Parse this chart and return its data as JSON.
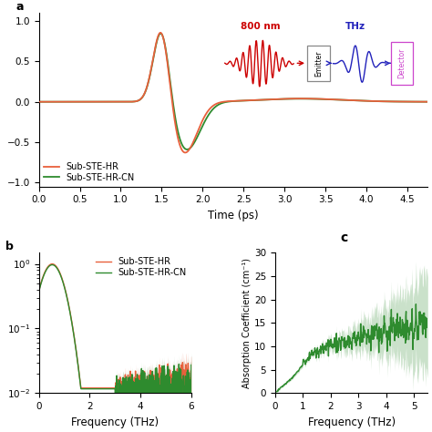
{
  "top_panel": {
    "xlim": [
      0,
      4.75
    ],
    "ylim": [
      -1.05,
      1.1
    ],
    "xticks": [
      0,
      0.5,
      1,
      1.5,
      2,
      2.5,
      3,
      3.5,
      4,
      4.5
    ],
    "yticks": [
      -1,
      -0.5,
      0,
      0.5,
      1
    ],
    "xlabel": "Time (ps)",
    "color_hr": "#E8603C",
    "color_cn": "#2E8B2E",
    "legend_labels": [
      "Sub-STE-HR",
      "Sub-STE-HR-CN"
    ]
  },
  "bottom_left": {
    "xlim": [
      0,
      6
    ],
    "xticks": [
      0,
      2,
      4,
      6
    ],
    "xlabel": "Frequency (THz)",
    "color_hr": "#E8603C",
    "color_cn": "#2E8B2E",
    "legend_labels": [
      "Sub-STE-HR",
      "Sub-STE-HR-CN"
    ]
  },
  "bottom_right": {
    "xlim": [
      0,
      5.5
    ],
    "ylim": [
      0,
      30
    ],
    "xticks": [
      0,
      1,
      2,
      3,
      4,
      5
    ],
    "yticks": [
      0,
      5,
      10,
      15,
      20,
      25,
      30
    ],
    "xlabel": "Frequency (THz)",
    "ylabel": "Absorption Coefficient (cm⁻¹)",
    "color_cn": "#2E8B2E"
  },
  "inset": {
    "laser_color": "#CC0000",
    "thz_color": "#2222BB",
    "emitter_edge": "#888888",
    "detector_edge": "#CC44CC",
    "label_800nm_color": "#CC0000",
    "label_THz_color": "#2222BB"
  }
}
